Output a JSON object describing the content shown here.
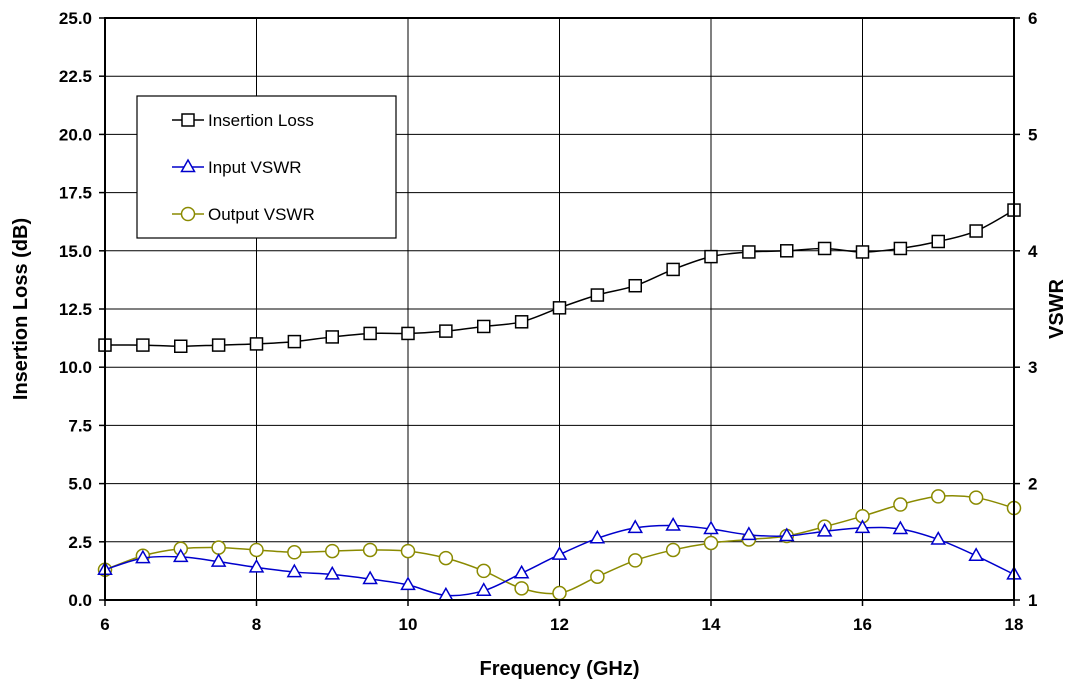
{
  "chart_data": {
    "type": "line",
    "title": "",
    "xlabel": "Frequency (GHz)",
    "ylabel": "Insertion Loss (dB)",
    "y2label": "VSWR",
    "xlim": [
      6,
      18
    ],
    "ylim": [
      0,
      25
    ],
    "y2lim": [
      1,
      6
    ],
    "x_ticks": [
      "6",
      "8",
      "10",
      "12",
      "14",
      "16",
      "18"
    ],
    "y_ticks": [
      "0.0",
      "2.5",
      "5.0",
      "7.5",
      "10.0",
      "12.5",
      "15.0",
      "17.5",
      "20.0",
      "22.5",
      "25.0"
    ],
    "y2_ticks": [
      "1",
      "2",
      "3",
      "4",
      "5",
      "6"
    ],
    "grid": true,
    "legend_position": "top-left",
    "x": [
      6,
      6.5,
      7,
      7.5,
      8,
      8.5,
      9,
      9.5,
      10,
      10.5,
      11,
      11.5,
      12,
      12.5,
      13,
      13.5,
      14,
      14.5,
      15,
      15.5,
      16,
      16.5,
      17,
      17.5,
      18
    ],
    "series": [
      {
        "name": "Insertion Loss",
        "axis": "left",
        "marker": "square",
        "color": "#000000",
        "values": [
          10.95,
          10.95,
          10.9,
          10.95,
          11.0,
          11.1,
          11.3,
          11.45,
          11.45,
          11.55,
          11.75,
          11.95,
          12.55,
          13.1,
          13.5,
          14.2,
          14.75,
          14.95,
          15.0,
          15.1,
          14.95,
          15.1,
          15.4,
          15.85,
          16.75
        ]
      },
      {
        "name": "Input VSWR",
        "axis": "right",
        "marker": "triangle",
        "color": "#0000cc",
        "values": [
          1.26,
          1.36,
          1.37,
          1.33,
          1.28,
          1.24,
          1.22,
          1.18,
          1.13,
          1.04,
          1.08,
          1.23,
          1.39,
          1.53,
          1.62,
          1.64,
          1.61,
          1.56,
          1.55,
          1.59,
          1.62,
          1.61,
          1.52,
          1.38,
          1.22
        ]
      },
      {
        "name": "Output VSWR",
        "axis": "right",
        "marker": "circle",
        "color": "#8a8a00",
        "values": [
          1.26,
          1.38,
          1.44,
          1.45,
          1.43,
          1.41,
          1.42,
          1.43,
          1.42,
          1.36,
          1.25,
          1.1,
          1.06,
          1.2,
          1.34,
          1.43,
          1.49,
          1.52,
          1.55,
          1.63,
          1.72,
          1.82,
          1.89,
          1.88,
          1.79
        ]
      }
    ]
  }
}
